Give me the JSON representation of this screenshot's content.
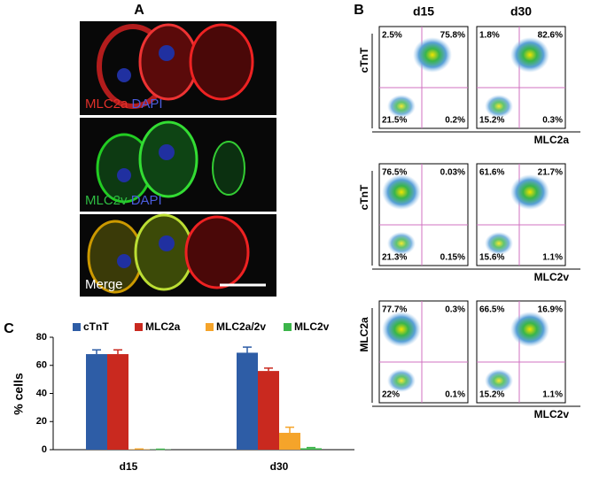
{
  "panel_a": {
    "label": "A",
    "images": [
      {
        "stain": "MLC2a",
        "counter": "DAPI"
      },
      {
        "stain": "MLC2v",
        "counter": "DAPI"
      },
      {
        "stain": "Merge"
      }
    ]
  },
  "panel_b": {
    "label": "B",
    "columns": [
      "d15",
      "d30"
    ],
    "rows": [
      {
        "y_label": "cTnT",
        "x_label": "MLC2a",
        "plots": [
          [
            "2.5%",
            "75.8%",
            "21.5%",
            "0.2%"
          ],
          [
            "1.8%",
            "82.6%",
            "15.2%",
            "0.3%"
          ]
        ]
      },
      {
        "y_label": "cTnT",
        "x_label": "MLC2v",
        "plots": [
          [
            "76.5%",
            "0.03%",
            "21.3%",
            "0.15%"
          ],
          [
            "61.6%",
            "21.7%",
            "15.6%",
            "1.1%"
          ]
        ]
      },
      {
        "y_label": "MLC2a",
        "x_label": "MLC2v",
        "plots": [
          [
            "77.7%",
            "0.3%",
            "22%",
            "0.1%"
          ],
          [
            "66.5%",
            "16.9%",
            "15.2%",
            "1.1%"
          ]
        ]
      }
    ]
  },
  "chart_data": {
    "type": "bar",
    "panel_label": "C",
    "ylabel": "% cells",
    "categories": [
      "d15",
      "d30"
    ],
    "series": [
      {
        "name": "cTnT",
        "color": "#2e5da6",
        "values": [
          68,
          69
        ],
        "errors": [
          3,
          4
        ]
      },
      {
        "name": "MLC2a",
        "color": "#c9291f",
        "values": [
          68,
          56
        ],
        "errors": [
          3,
          2
        ]
      },
      {
        "name": "MLC2a/2v",
        "color": "#f5a42a",
        "values": [
          0.3,
          12
        ],
        "errors": [
          0.2,
          4
        ]
      },
      {
        "name": "MLC2v",
        "color": "#3cb54a",
        "values": [
          0.2,
          1
        ],
        "errors": [
          0.1,
          0.5
        ]
      }
    ],
    "ylim": [
      0,
      80
    ],
    "yticks": [
      0,
      20,
      40,
      60,
      80
    ]
  }
}
